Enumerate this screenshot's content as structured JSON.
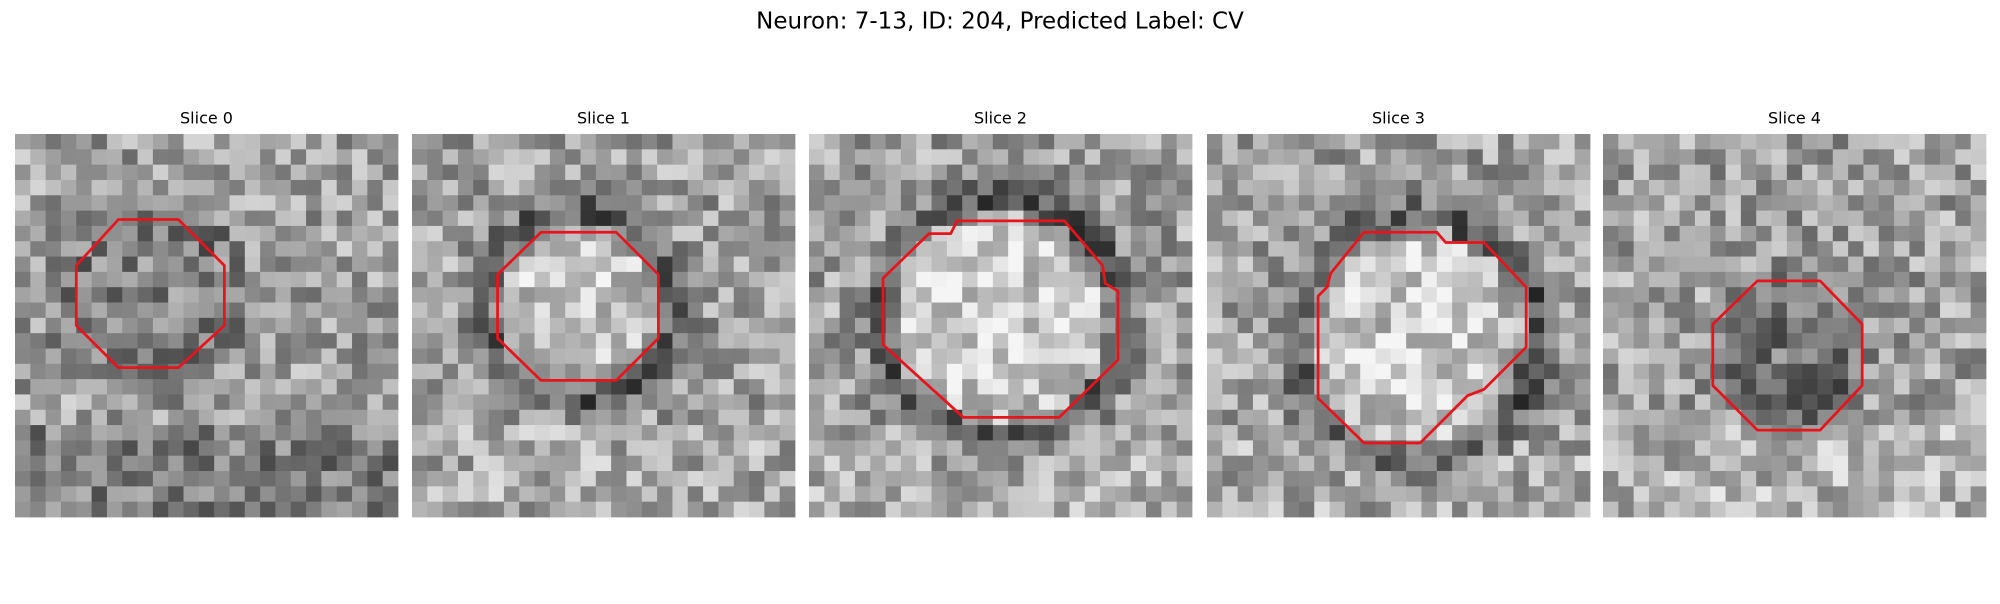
{
  "title": "Neuron: 7-13, ID: 204, Predicted Label: CV",
  "panels": [
    {
      "title": "Slice 0"
    },
    {
      "title": "Slice 1"
    },
    {
      "title": "Slice 2"
    },
    {
      "title": "Slice 3"
    },
    {
      "title": "Slice 4"
    }
  ]
}
